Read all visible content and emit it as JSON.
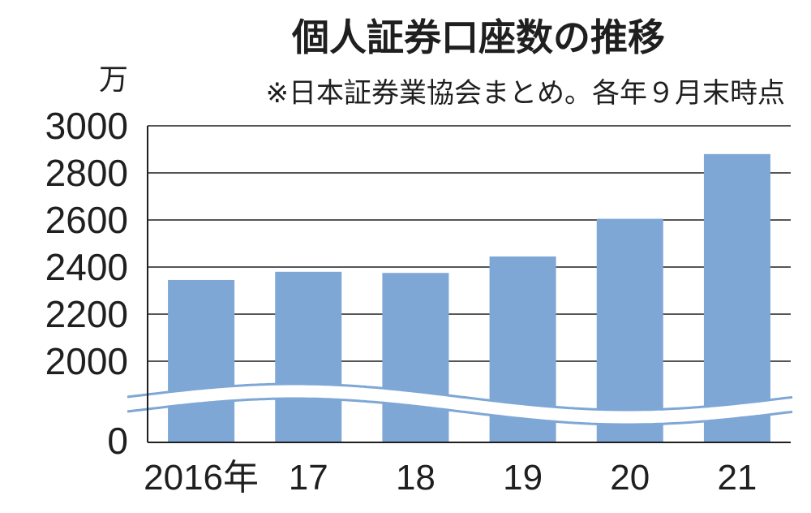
{
  "chart_data": {
    "type": "bar",
    "title": "個人証券口座数の推移",
    "subtitle": "※日本証券業協会まとめ。各年９月末時点",
    "unit": "万",
    "categories": [
      "2016年",
      "17",
      "18",
      "19",
      "20",
      "21"
    ],
    "values": [
      2345,
      2380,
      2375,
      2445,
      2605,
      2880
    ],
    "ylim": [
      2000,
      3000
    ],
    "yticks": [
      "3000",
      "2800",
      "2600",
      "2400",
      "2200",
      "2000"
    ],
    "ytick_values": [
      3000,
      2800,
      2600,
      2400,
      2200,
      2000
    ],
    "zero_label": "0",
    "axis_break": true,
    "grid": true,
    "colors": {
      "bar": "#7ea7d6",
      "grid": "#1f1f1f",
      "text": "#1f1f1f",
      "background": "#ffffff"
    }
  }
}
